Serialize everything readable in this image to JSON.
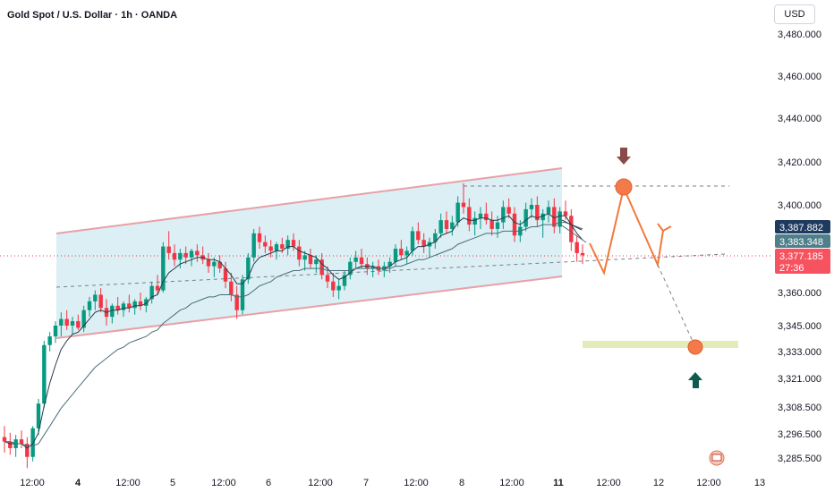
{
  "header": {
    "title": "Gold Spot / U.S. Dollar · 1h · OANDA"
  },
  "currency_selector": {
    "label": "USD"
  },
  "chart_data": {
    "type": "candlestick",
    "title": "Gold Spot / U.S. Dollar · 1h · OANDA",
    "y_ticks": [
      "3,480.000",
      "3,460.000",
      "3,440.000",
      "3,420.000",
      "3,400.000",
      "3,360.000",
      "3,345.000",
      "3,333.000",
      "3,321.000",
      "3,308.500",
      "3,296.500",
      "3,285.500"
    ],
    "x_ticks": [
      {
        "label": "12:00",
        "bold": false
      },
      {
        "label": "4",
        "bold": true
      },
      {
        "label": "12:00",
        "bold": false
      },
      {
        "label": "5",
        "bold": false
      },
      {
        "label": "12:00",
        "bold": false
      },
      {
        "label": "6",
        "bold": false
      },
      {
        "label": "12:00",
        "bold": false
      },
      {
        "label": "7",
        "bold": false
      },
      {
        "label": "12:00",
        "bold": false
      },
      {
        "label": "8",
        "bold": false
      },
      {
        "label": "12:00",
        "bold": false
      },
      {
        "label": "11",
        "bold": true
      },
      {
        "label": "12:00",
        "bold": false
      },
      {
        "label": "12",
        "bold": false
      },
      {
        "label": "12:00",
        "bold": false
      },
      {
        "label": "13",
        "bold": false
      }
    ],
    "price_tags": [
      {
        "text": "3,387.882",
        "color": "#1e3a5f"
      },
      {
        "text": "3,383.348",
        "color": "#4f7f8a"
      },
      {
        "text": "3,377.185",
        "color": "#f7525f"
      },
      {
        "text": "27:36",
        "color": "#f7525f"
      }
    ],
    "colors": {
      "up": "#089981",
      "down": "#f23645",
      "channel": "#e8a0a8",
      "fill": "#cfe9f0",
      "projection": "#f07a3a"
    },
    "candles": [
      [
        3295,
        3300,
        3288,
        3293
      ],
      [
        3293,
        3297,
        3287,
        3290
      ],
      [
        3290,
        3296,
        3286,
        3294
      ],
      [
        3294,
        3298,
        3290,
        3292
      ],
      [
        3292,
        3295,
        3281,
        3286
      ],
      [
        3286,
        3300,
        3284,
        3299
      ],
      [
        3299,
        3312,
        3296,
        3310
      ],
      [
        3310,
        3338,
        3308,
        3336
      ],
      [
        3336,
        3342,
        3333,
        3340
      ],
      [
        3340,
        3347,
        3337,
        3345
      ],
      [
        3345,
        3351,
        3340,
        3348
      ],
      [
        3348,
        3352,
        3343,
        3345
      ],
      [
        3345,
        3349,
        3341,
        3347
      ],
      [
        3347,
        3350,
        3343,
        3344
      ],
      [
        3344,
        3354,
        3342,
        3352
      ],
      [
        3352,
        3358,
        3349,
        3356
      ],
      [
        3356,
        3361,
        3352,
        3359
      ],
      [
        3359,
        3362,
        3351,
        3353
      ],
      [
        3353,
        3357,
        3345,
        3349
      ],
      [
        3349,
        3355,
        3346,
        3354
      ],
      [
        3354,
        3358,
        3350,
        3352
      ],
      [
        3352,
        3356,
        3349,
        3355
      ],
      [
        3355,
        3359,
        3351,
        3353
      ],
      [
        3353,
        3357,
        3350,
        3356
      ],
      [
        3356,
        3360,
        3352,
        3354
      ],
      [
        3354,
        3358,
        3351,
        3357
      ],
      [
        3357,
        3365,
        3355,
        3363
      ],
      [
        3363,
        3368,
        3359,
        3361
      ],
      [
        3361,
        3383,
        3360,
        3381
      ],
      [
        3381,
        3388,
        3375,
        3378
      ],
      [
        3378,
        3382,
        3372,
        3375
      ],
      [
        3375,
        3380,
        3371,
        3378
      ],
      [
        3378,
        3381,
        3373,
        3376
      ],
      [
        3376,
        3380,
        3372,
        3379
      ],
      [
        3379,
        3382,
        3374,
        3377
      ],
      [
        3377,
        3381,
        3373,
        3375
      ],
      [
        3375,
        3378,
        3369,
        3372
      ],
      [
        3372,
        3376,
        3367,
        3374
      ],
      [
        3374,
        3377,
        3369,
        3371
      ],
      [
        3371,
        3374,
        3362,
        3365
      ],
      [
        3365,
        3369,
        3356,
        3359
      ],
      [
        3359,
        3363,
        3348,
        3352
      ],
      [
        3352,
        3368,
        3350,
        3366
      ],
      [
        3366,
        3378,
        3364,
        3376
      ],
      [
        3376,
        3389,
        3374,
        3387
      ],
      [
        3387,
        3390,
        3380,
        3383
      ],
      [
        3383,
        3386,
        3378,
        3381
      ],
      [
        3381,
        3384,
        3376,
        3379
      ],
      [
        3379,
        3383,
        3375,
        3382
      ],
      [
        3382,
        3385,
        3378,
        3380
      ],
      [
        3380,
        3386,
        3377,
        3384
      ],
      [
        3384,
        3387,
        3379,
        3381
      ],
      [
        3381,
        3384,
        3372,
        3375
      ],
      [
        3375,
        3379,
        3370,
        3377
      ],
      [
        3377,
        3380,
        3371,
        3373
      ],
      [
        3373,
        3377,
        3369,
        3375
      ],
      [
        3375,
        3378,
        3366,
        3368
      ],
      [
        3368,
        3372,
        3362,
        3365
      ],
      [
        3365,
        3369,
        3358,
        3361
      ],
      [
        3361,
        3366,
        3357,
        3363
      ],
      [
        3363,
        3370,
        3361,
        3368
      ],
      [
        3368,
        3376,
        3366,
        3374
      ],
      [
        3374,
        3379,
        3371,
        3376
      ],
      [
        3376,
        3380,
        3371,
        3373
      ],
      [
        3373,
        3376,
        3368,
        3371
      ],
      [
        3371,
        3374,
        3367,
        3372
      ],
      [
        3372,
        3375,
        3368,
        3370
      ],
      [
        3370,
        3374,
        3367,
        3372
      ],
      [
        3372,
        3376,
        3369,
        3374
      ],
      [
        3374,
        3382,
        3372,
        3380
      ],
      [
        3380,
        3384,
        3375,
        3377
      ],
      [
        3377,
        3381,
        3373,
        3379
      ],
      [
        3379,
        3390,
        3377,
        3388
      ],
      [
        3388,
        3392,
        3382,
        3384
      ],
      [
        3384,
        3387,
        3378,
        3381
      ],
      [
        3381,
        3385,
        3376,
        3383
      ],
      [
        3383,
        3389,
        3380,
        3387
      ],
      [
        3387,
        3396,
        3385,
        3393
      ],
      [
        3393,
        3397,
        3387,
        3389
      ],
      [
        3389,
        3395,
        3386,
        3392
      ],
      [
        3392,
        3404,
        3390,
        3401
      ],
      [
        3401,
        3410,
        3396,
        3399
      ],
      [
        3399,
        3403,
        3388,
        3391
      ],
      [
        3391,
        3397,
        3386,
        3394
      ],
      [
        3394,
        3399,
        3389,
        3396
      ],
      [
        3396,
        3401,
        3391,
        3393
      ],
      [
        3393,
        3397,
        3386,
        3389
      ],
      [
        3389,
        3395,
        3385,
        3392
      ],
      [
        3392,
        3402,
        3389,
        3399
      ],
      [
        3399,
        3403,
        3394,
        3396
      ],
      [
        3396,
        3399,
        3383,
        3386
      ],
      [
        3386,
        3393,
        3383,
        3390
      ],
      [
        3390,
        3401,
        3388,
        3398
      ],
      [
        3398,
        3403,
        3394,
        3400
      ],
      [
        3400,
        3404,
        3390,
        3393
      ],
      [
        3393,
        3398,
        3385,
        3396
      ],
      [
        3396,
        3402,
        3392,
        3399
      ],
      [
        3399,
        3403,
        3387,
        3390
      ],
      [
        3390,
        3399,
        3387,
        3397
      ],
      [
        3397,
        3402,
        3393,
        3395
      ],
      [
        3395,
        3398,
        3379,
        3383
      ],
      [
        3383,
        3386,
        3374,
        3378
      ],
      [
        3378,
        3382,
        3373,
        3377
      ]
    ],
    "ema_fast": [
      3293,
      3292,
      3292,
      3292,
      3290,
      3292,
      3297,
      3309,
      3319,
      3327,
      3334,
      3338,
      3341,
      3342,
      3345,
      3348,
      3351,
      3352,
      3351,
      3352,
      3352,
      3353,
      3353,
      3354,
      3354,
      3355,
      3358,
      3359,
      3365,
      3369,
      3371,
      3373,
      3374,
      3375,
      3376,
      3376,
      3375,
      3375,
      3374,
      3371,
      3368,
      3364,
      3364,
      3367,
      3373,
      3376,
      3377,
      3378,
      3379,
      3379,
      3381,
      3381,
      3379,
      3378,
      3377,
      3376,
      3373,
      3371,
      3368,
      3366,
      3367,
      3369,
      3371,
      3372,
      3372,
      3372,
      3371,
      3371,
      3372,
      3374,
      3375,
      3376,
      3379,
      3381,
      3381,
      3382,
      3383,
      3386,
      3387,
      3388,
      3392,
      3394,
      3393,
      3393,
      3394,
      3394,
      3393,
      3393,
      3394,
      3395,
      3392,
      3391,
      3393,
      3395,
      3394,
      3395,
      3396,
      3394,
      3395,
      3395,
      3391,
      3387,
      3384
    ],
    "ema_slow": [
      3293,
      3293,
      3292,
      3292,
      3291,
      3291,
      3292,
      3296,
      3300,
      3304,
      3308,
      3311,
      3314,
      3317,
      3320,
      3323,
      3326,
      3328,
      3330,
      3332,
      3334,
      3335,
      3337,
      3338,
      3339,
      3340,
      3342,
      3343,
      3346,
      3348,
      3350,
      3352,
      3353,
      3355,
      3356,
      3357,
      3358,
      3358,
      3359,
      3359,
      3359,
      3358,
      3358,
      3359,
      3361,
      3363,
      3364,
      3365,
      3367,
      3368,
      3369,
      3370,
      3370,
      3371,
      3371,
      3371,
      3371,
      3370,
      3370,
      3370,
      3370,
      3370,
      3371,
      3371,
      3371,
      3371,
      3371,
      3371,
      3371,
      3372,
      3372,
      3373,
      3374,
      3375,
      3375,
      3376,
      3377,
      3378,
      3379,
      3380,
      3382,
      3383,
      3384,
      3385,
      3386,
      3387,
      3387,
      3387,
      3388,
      3388,
      3388,
      3388,
      3389,
      3390,
      3390,
      3391,
      3391,
      3391,
      3392,
      3392,
      3391,
      3390,
      3389
    ]
  }
}
